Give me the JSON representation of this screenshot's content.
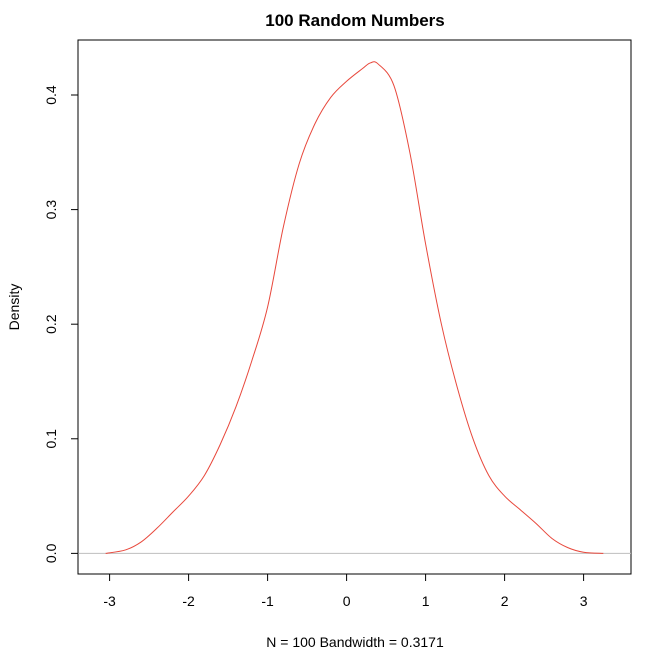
{
  "chart_data": {
    "type": "line",
    "title": "100 Random Numbers",
    "xlabel": "N = 100   Bandwidth = 0.3171",
    "ylabel": "Density",
    "xlim": [
      -3.4,
      3.6
    ],
    "ylim": [
      -0.018,
      0.448
    ],
    "x_ticks": [
      -3,
      -2,
      -1,
      0,
      1,
      2,
      3
    ],
    "y_ticks": [
      0.0,
      0.1,
      0.2,
      0.3,
      0.4
    ],
    "x_tick_labels": [
      "-3",
      "-2",
      "-1",
      "0",
      "1",
      "2",
      "3"
    ],
    "y_tick_labels": [
      "0.0",
      "0.1",
      "0.2",
      "0.3",
      "0.4"
    ],
    "baseline": 0,
    "grid": false,
    "series": [
      {
        "name": "density",
        "color": "#e8483c",
        "x": [
          -3.05,
          -2.8,
          -2.6,
          -2.4,
          -2.2,
          -2.0,
          -1.8,
          -1.6,
          -1.4,
          -1.2,
          -1.0,
          -0.8,
          -0.6,
          -0.4,
          -0.2,
          0.0,
          0.2,
          0.3,
          0.4,
          0.6,
          0.8,
          1.0,
          1.2,
          1.4,
          1.6,
          1.8,
          2.0,
          2.2,
          2.4,
          2.6,
          2.8,
          3.0,
          3.25
        ],
        "y": [
          0.0,
          0.003,
          0.01,
          0.022,
          0.036,
          0.05,
          0.068,
          0.095,
          0.128,
          0.168,
          0.215,
          0.285,
          0.34,
          0.375,
          0.398,
          0.412,
          0.423,
          0.428,
          0.427,
          0.408,
          0.35,
          0.27,
          0.2,
          0.145,
          0.1,
          0.068,
          0.05,
          0.038,
          0.026,
          0.013,
          0.005,
          0.001,
          0.0
        ]
      }
    ],
    "colors": {
      "line": "#e8483c",
      "baseline": "#bebebe",
      "axes": "#000000"
    }
  }
}
